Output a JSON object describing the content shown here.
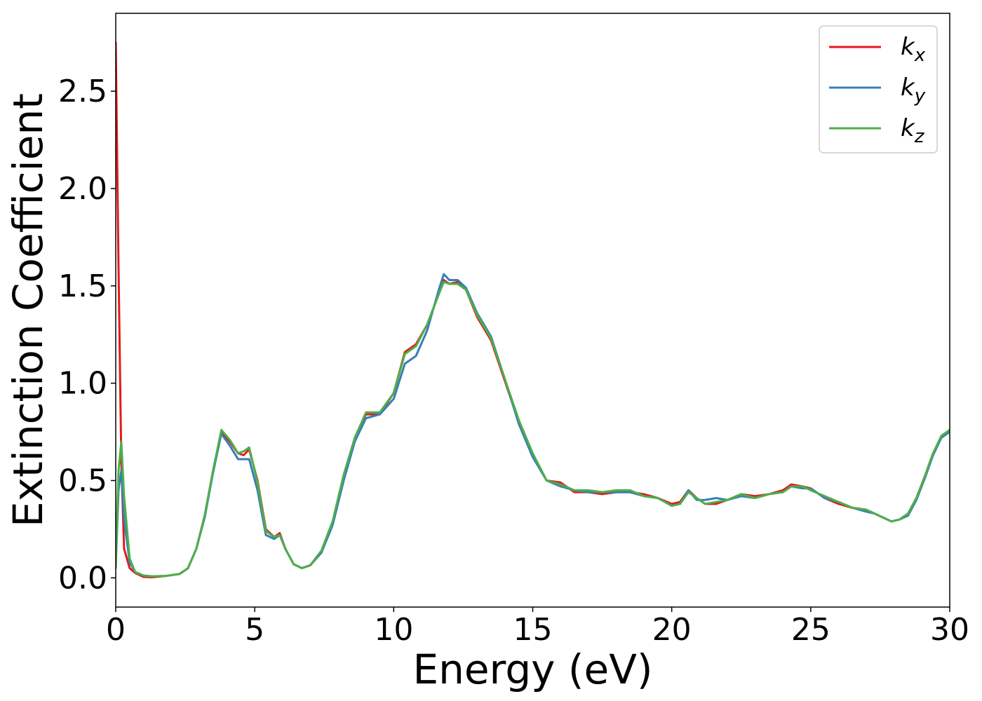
{
  "chart_data": {
    "type": "line",
    "title": "",
    "xlabel": "Energy (eV)",
    "ylabel": "Extinction Coefficient",
    "xlim": [
      0,
      30
    ],
    "ylim": [
      -0.15,
      2.9
    ],
    "xticks": [
      0,
      5,
      10,
      15,
      20,
      25,
      30
    ],
    "yticks": [
      0.0,
      0.5,
      1.0,
      1.5,
      2.0,
      2.5
    ],
    "xtick_labels": [
      "0",
      "5",
      "10",
      "15",
      "20",
      "25",
      "30"
    ],
    "ytick_labels": [
      "0.0",
      "0.5",
      "1.0",
      "1.5",
      "2.0",
      "2.5"
    ],
    "grid": false,
    "legend_position": "top-right",
    "series": [
      {
        "name": "k_x",
        "legend_base": "k",
        "legend_sub": "x",
        "color": "#e41a1c",
        "x": [
          0,
          0.1,
          0.2,
          0.3,
          0.5,
          0.7,
          1.0,
          1.3,
          1.8,
          2.3,
          2.6,
          2.9,
          3.2,
          3.5,
          3.8,
          4.1,
          4.4,
          4.6,
          4.8,
          5.1,
          5.4,
          5.7,
          5.9,
          6.1,
          6.4,
          6.7,
          7.0,
          7.4,
          7.8,
          8.2,
          8.6,
          9.0,
          9.5,
          10.0,
          10.4,
          10.8,
          11.2,
          11.6,
          11.8,
          12.0,
          12.3,
          12.6,
          13.0,
          13.5,
          14.0,
          14.5,
          15.0,
          15.5,
          16.0,
          16.5,
          17.0,
          17.5,
          18.0,
          18.5,
          19.0,
          19.5,
          20.0,
          20.3,
          20.6,
          20.9,
          21.2,
          21.6,
          22.0,
          22.5,
          23.0,
          23.5,
          24.0,
          24.3,
          24.7,
          25.0,
          25.5,
          26.0,
          26.5,
          27.0,
          27.3,
          27.6,
          27.9,
          28.2,
          28.5,
          28.8,
          29.1,
          29.4,
          29.7,
          30.0
        ],
        "y": [
          2.75,
          1.6,
          0.6,
          0.15,
          0.05,
          0.025,
          0.005,
          0.003,
          0.01,
          0.02,
          0.05,
          0.15,
          0.32,
          0.55,
          0.75,
          0.7,
          0.64,
          0.63,
          0.66,
          0.5,
          0.25,
          0.21,
          0.23,
          0.15,
          0.07,
          0.05,
          0.065,
          0.13,
          0.28,
          0.52,
          0.72,
          0.84,
          0.84,
          0.95,
          1.16,
          1.2,
          1.3,
          1.45,
          1.53,
          1.51,
          1.52,
          1.48,
          1.34,
          1.22,
          1.01,
          0.8,
          0.63,
          0.5,
          0.49,
          0.44,
          0.44,
          0.43,
          0.44,
          0.44,
          0.43,
          0.41,
          0.38,
          0.39,
          0.45,
          0.41,
          0.38,
          0.38,
          0.4,
          0.43,
          0.42,
          0.43,
          0.45,
          0.48,
          0.47,
          0.46,
          0.41,
          0.38,
          0.36,
          0.35,
          0.33,
          0.31,
          0.29,
          0.3,
          0.33,
          0.41,
          0.52,
          0.64,
          0.72,
          0.76
        ]
      },
      {
        "name": "k_y",
        "legend_base": "k",
        "legend_sub": "y",
        "color": "#377eb8",
        "x": [
          0,
          0.1,
          0.2,
          0.3,
          0.5,
          0.7,
          1.0,
          1.3,
          1.8,
          2.3,
          2.6,
          2.9,
          3.2,
          3.5,
          3.8,
          4.1,
          4.4,
          4.6,
          4.8,
          5.1,
          5.4,
          5.7,
          5.9,
          6.1,
          6.4,
          6.7,
          7.0,
          7.4,
          7.8,
          8.2,
          8.6,
          9.0,
          9.5,
          10.0,
          10.4,
          10.8,
          11.2,
          11.6,
          11.8,
          12.0,
          12.3,
          12.6,
          13.0,
          13.5,
          14.0,
          14.5,
          15.0,
          15.5,
          16.0,
          16.5,
          17.0,
          17.5,
          18.0,
          18.5,
          19.0,
          19.5,
          20.0,
          20.3,
          20.6,
          20.9,
          21.2,
          21.6,
          22.0,
          22.5,
          23.0,
          23.5,
          24.0,
          24.3,
          24.7,
          25.0,
          25.5,
          26.0,
          26.5,
          27.0,
          27.3,
          27.6,
          27.9,
          28.2,
          28.5,
          28.8,
          29.1,
          29.4,
          29.7,
          30.0
        ],
        "y": [
          0.05,
          0.45,
          0.55,
          0.3,
          0.08,
          0.03,
          0.012,
          0.008,
          0.01,
          0.02,
          0.05,
          0.15,
          0.31,
          0.54,
          0.74,
          0.68,
          0.61,
          0.61,
          0.61,
          0.45,
          0.22,
          0.2,
          0.22,
          0.15,
          0.07,
          0.05,
          0.065,
          0.13,
          0.27,
          0.5,
          0.7,
          0.82,
          0.84,
          0.92,
          1.1,
          1.14,
          1.27,
          1.47,
          1.56,
          1.53,
          1.53,
          1.49,
          1.36,
          1.24,
          1.02,
          0.79,
          0.62,
          0.5,
          0.47,
          0.45,
          0.44,
          0.44,
          0.44,
          0.44,
          0.42,
          0.41,
          0.37,
          0.38,
          0.45,
          0.4,
          0.4,
          0.41,
          0.4,
          0.42,
          0.41,
          0.43,
          0.44,
          0.47,
          0.46,
          0.46,
          0.41,
          0.39,
          0.36,
          0.34,
          0.33,
          0.31,
          0.29,
          0.3,
          0.32,
          0.4,
          0.51,
          0.63,
          0.72,
          0.75
        ]
      },
      {
        "name": "k_z",
        "legend_base": "k",
        "legend_sub": "z",
        "color": "#4daf4a",
        "x": [
          0,
          0.1,
          0.2,
          0.3,
          0.5,
          0.7,
          1.0,
          1.3,
          1.8,
          2.3,
          2.6,
          2.9,
          3.2,
          3.5,
          3.8,
          4.1,
          4.4,
          4.6,
          4.8,
          5.1,
          5.4,
          5.7,
          5.9,
          6.1,
          6.4,
          6.7,
          7.0,
          7.4,
          7.8,
          8.2,
          8.6,
          9.0,
          9.5,
          10.0,
          10.4,
          10.8,
          11.2,
          11.6,
          11.8,
          12.0,
          12.3,
          12.6,
          13.0,
          13.5,
          14.0,
          14.5,
          15.0,
          15.5,
          16.0,
          16.5,
          17.0,
          17.5,
          18.0,
          18.5,
          19.0,
          19.5,
          20.0,
          20.3,
          20.6,
          20.9,
          21.2,
          21.6,
          22.0,
          22.5,
          23.0,
          23.5,
          24.0,
          24.3,
          24.7,
          25.0,
          25.5,
          26.0,
          26.5,
          27.0,
          27.3,
          27.6,
          27.9,
          28.2,
          28.5,
          28.8,
          29.1,
          29.4,
          29.7,
          30.0
        ],
        "y": [
          0.05,
          0.55,
          0.7,
          0.42,
          0.1,
          0.03,
          0.012,
          0.008,
          0.01,
          0.02,
          0.05,
          0.15,
          0.32,
          0.55,
          0.76,
          0.71,
          0.64,
          0.65,
          0.67,
          0.49,
          0.24,
          0.21,
          0.22,
          0.15,
          0.07,
          0.05,
          0.065,
          0.14,
          0.29,
          0.53,
          0.72,
          0.85,
          0.85,
          0.95,
          1.15,
          1.19,
          1.3,
          1.45,
          1.52,
          1.51,
          1.51,
          1.48,
          1.35,
          1.23,
          1.02,
          0.81,
          0.64,
          0.5,
          0.48,
          0.45,
          0.45,
          0.44,
          0.45,
          0.45,
          0.42,
          0.41,
          0.37,
          0.38,
          0.44,
          0.41,
          0.38,
          0.39,
          0.4,
          0.43,
          0.41,
          0.43,
          0.44,
          0.47,
          0.47,
          0.45,
          0.42,
          0.39,
          0.36,
          0.35,
          0.33,
          0.31,
          0.29,
          0.3,
          0.33,
          0.41,
          0.52,
          0.64,
          0.73,
          0.76
        ]
      }
    ]
  }
}
